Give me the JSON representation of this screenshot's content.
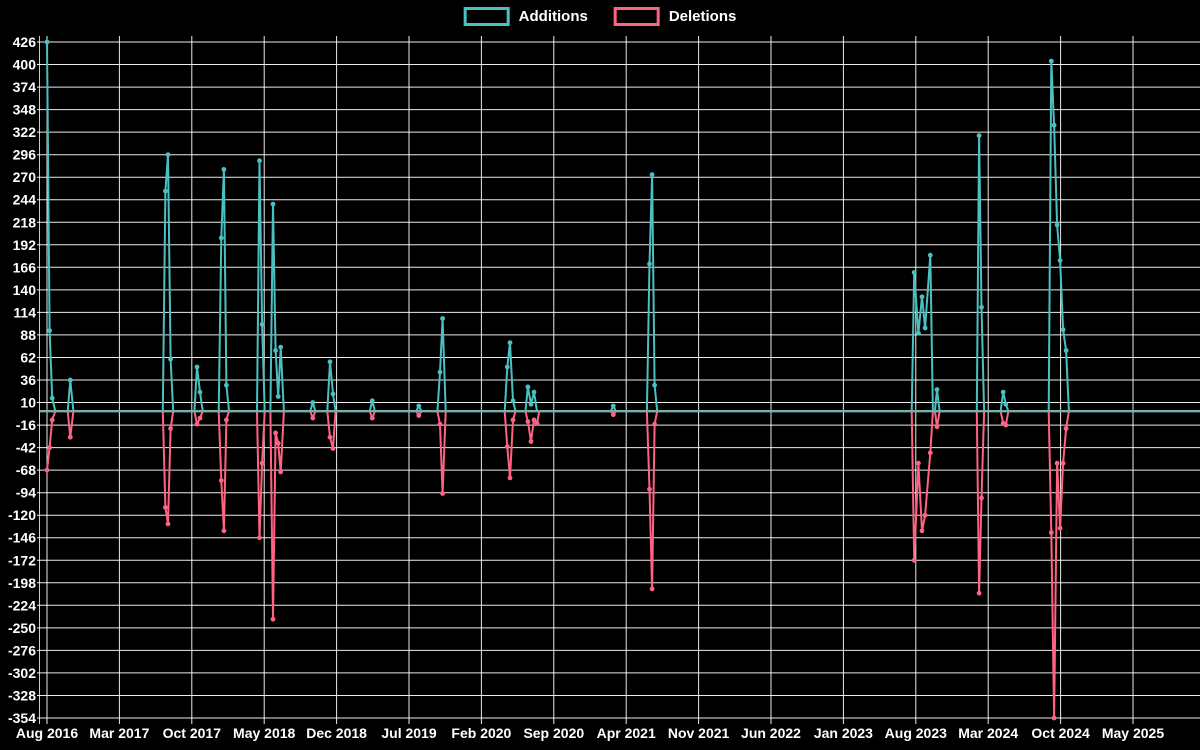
{
  "chart_data": {
    "type": "line",
    "title": "",
    "background": "#000000",
    "text_color": "#ffffff",
    "grid": {
      "on": true,
      "color": "rgba(255,255,255,0.92)",
      "axis_border_color": "rgba(255,255,255,0.8)",
      "zero_line_color": "#76b0aa"
    },
    "legend_position": "top",
    "x_axis": {
      "unit": "months_since_first_point",
      "tick_labels": [
        "Aug 2016",
        "Mar 2017",
        "Oct 2017",
        "May 2018",
        "Dec 2018",
        "Jul 2019",
        "Feb 2020",
        "Sep 2020",
        "Apr 2021",
        "Nov 2021",
        "Jun 2022",
        "Jan 2023",
        "Aug 2023",
        "Mar 2024",
        "Oct 2024",
        "May 2025"
      ],
      "tick_months": [
        0,
        7,
        14,
        21,
        28,
        35,
        42,
        49,
        56,
        63,
        70,
        77,
        84,
        91,
        98,
        105
      ]
    },
    "y_axis": {
      "tick_values": [
        426,
        400,
        374,
        348,
        322,
        296,
        270,
        244,
        218,
        192,
        166,
        140,
        114,
        88,
        62,
        36,
        10,
        -16,
        -42,
        -68,
        -94,
        -120,
        -146,
        -172,
        -198,
        -224,
        -250,
        -276,
        -302,
        -328,
        -354
      ],
      "min": -354,
      "max": 426,
      "tick_step": 26
    },
    "x": [
      0,
      0.25,
      0.5,
      0.8,
      2.0,
      2.25,
      2.55,
      11.2,
      11.45,
      11.7,
      11.95,
      12.2,
      14.25,
      14.5,
      14.79,
      15.05,
      16.6,
      16.85,
      17.1,
      17.35,
      17.6,
      20.3,
      20.55,
      20.8,
      21.05,
      21.6,
      21.85,
      22.1,
      22.35,
      22.6,
      22.9,
      25.45,
      25.7,
      25.95,
      27.1,
      27.36,
      27.65,
      27.9,
      31.2,
      31.45,
      31.7,
      35.7,
      35.95,
      36.2,
      37.75,
      38.0,
      38.25,
      38.55,
      44.25,
      44.5,
      44.77,
      45.06,
      45.3,
      46.25,
      46.5,
      46.8,
      47.09,
      47.38,
      47.6,
      54.5,
      54.75,
      55.0,
      58.0,
      58.25,
      58.5,
      58.75,
      59.0,
      83.6,
      83.85,
      84.25,
      84.6,
      84.9,
      85.4,
      85.65,
      85.85,
      86.05,
      86.3,
      89.9,
      90.12,
      90.35,
      90.6,
      92.2,
      92.45,
      92.7,
      92.95,
      96.85,
      97.1,
      97.37,
      97.66,
      97.95,
      98.24,
      98.53,
      98.8,
      105.0
    ],
    "series": [
      {
        "name": "Additions",
        "color": "#4bc0c0",
        "values": [
          426,
          93,
          15,
          0,
          0,
          36,
          0,
          0,
          254,
          296,
          60,
          0,
          0,
          51,
          22,
          0,
          0,
          200,
          279,
          30,
          0,
          0,
          289,
          100,
          0,
          0,
          239,
          70,
          17,
          74,
          0,
          0,
          10,
          0,
          0,
          57,
          20,
          0,
          0,
          12,
          0,
          0,
          6,
          0,
          0,
          45,
          107,
          0,
          0,
          51,
          79,
          12,
          0,
          0,
          28,
          8,
          22,
          0,
          0,
          0,
          6,
          0,
          0,
          170,
          273,
          30,
          0,
          0,
          160,
          90,
          132,
          96,
          180,
          0,
          0,
          25,
          0,
          0,
          318,
          120,
          0,
          0,
          22,
          8,
          0,
          0,
          404,
          330,
          215,
          174,
          94,
          70,
          0,
          0
        ]
      },
      {
        "name": "Deletions",
        "color": "#ff6384",
        "values": [
          -68,
          -42,
          -10,
          0,
          0,
          -30,
          0,
          0,
          -111,
          -130,
          -20,
          0,
          0,
          -15,
          -8,
          0,
          0,
          -80,
          -138,
          -10,
          0,
          0,
          -146,
          -60,
          0,
          0,
          -240,
          -25,
          -37,
          -70,
          0,
          0,
          -8,
          0,
          0,
          -30,
          -43,
          0,
          0,
          -8,
          0,
          0,
          -5,
          0,
          0,
          -15,
          -95,
          0,
          0,
          -41,
          -77,
          -10,
          0,
          0,
          -12,
          -35,
          -10,
          -14,
          0,
          0,
          -4,
          0,
          0,
          -90,
          -205,
          -15,
          0,
          0,
          -172,
          -60,
          -138,
          -120,
          -48,
          0,
          0,
          -18,
          0,
          0,
          -210,
          -100,
          0,
          0,
          -14,
          -16,
          0,
          0,
          -140,
          -354,
          -60,
          -135,
          -60,
          -20,
          0,
          0
        ]
      }
    ]
  }
}
